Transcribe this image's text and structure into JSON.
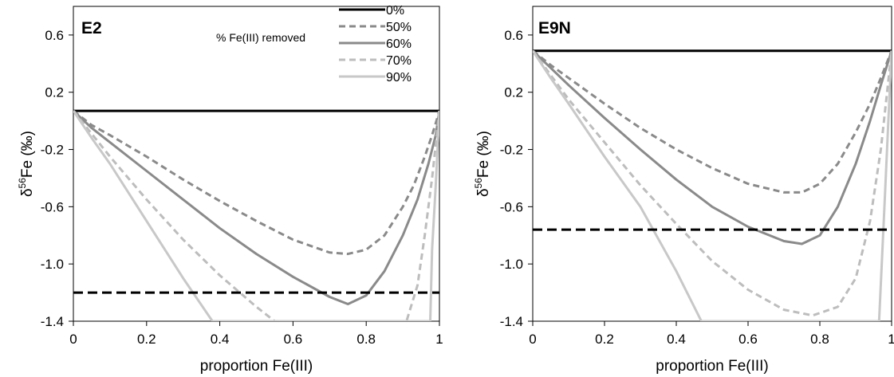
{
  "chart_data": [
    {
      "type": "line",
      "title": "E2",
      "xlabel": "proportion Fe(III)",
      "ylabel_main": "δ",
      "ylabel_sup": "56",
      "ylabel_rest": "Fe (‰)",
      "xlim": [
        0,
        1
      ],
      "ylim": [
        -1.4,
        0.8
      ],
      "xticks": [
        "0",
        "0.2",
        "0.4",
        "0.6",
        "0.8",
        "1"
      ],
      "yticks": [
        "-1.4",
        "-1.0",
        "-0.6",
        "-0.2",
        "0.2",
        "0.6"
      ],
      "legend_title": "% Fe(III) removed",
      "legend_position": "top-right",
      "reference_line": {
        "style": "dashed",
        "color": "#000000",
        "y": -1.2
      },
      "series": [
        {
          "name": "0%",
          "color": "#000000",
          "dash": "solid",
          "points": [
            [
              0,
              0.07
            ],
            [
              1,
              0.07
            ]
          ]
        },
        {
          "name": "50%",
          "color": "#8a8a8a",
          "dash": "dashed",
          "points": [
            [
              0,
              0.07
            ],
            [
              0.05,
              -0.03
            ],
            [
              0.1,
              -0.1
            ],
            [
              0.2,
              -0.25
            ],
            [
              0.3,
              -0.41
            ],
            [
              0.4,
              -0.56
            ],
            [
              0.5,
              -0.7
            ],
            [
              0.6,
              -0.83
            ],
            [
              0.7,
              -0.92
            ],
            [
              0.75,
              -0.93
            ],
            [
              0.8,
              -0.9
            ],
            [
              0.85,
              -0.8
            ],
            [
              0.9,
              -0.6
            ],
            [
              0.93,
              -0.45
            ],
            [
              0.96,
              -0.25
            ],
            [
              0.98,
              -0.1
            ],
            [
              1,
              0.07
            ]
          ]
        },
        {
          "name": "60%",
          "color": "#8a8a8a",
          "dash": "solid",
          "points": [
            [
              0,
              0.07
            ],
            [
              0.05,
              -0.05
            ],
            [
              0.1,
              -0.15
            ],
            [
              0.2,
              -0.35
            ],
            [
              0.3,
              -0.55
            ],
            [
              0.4,
              -0.75
            ],
            [
              0.5,
              -0.93
            ],
            [
              0.6,
              -1.09
            ],
            [
              0.7,
              -1.23
            ],
            [
              0.75,
              -1.28
            ],
            [
              0.8,
              -1.22
            ],
            [
              0.85,
              -1.05
            ],
            [
              0.9,
              -0.8
            ],
            [
              0.94,
              -0.55
            ],
            [
              0.97,
              -0.3
            ],
            [
              0.99,
              -0.1
            ],
            [
              1,
              0.07
            ]
          ]
        },
        {
          "name": "70%",
          "color": "#bdbdbd",
          "dash": "dashed",
          "points": [
            [
              0,
              0.07
            ],
            [
              0.1,
              -0.25
            ],
            [
              0.2,
              -0.55
            ],
            [
              0.3,
              -0.83
            ],
            [
              0.4,
              -1.08
            ],
            [
              0.5,
              -1.3
            ],
            [
              0.55,
              -1.4
            ],
            [
              0.91,
              -1.4
            ],
            [
              0.94,
              -1.15
            ],
            [
              0.96,
              -0.8
            ],
            [
              0.98,
              -0.4
            ],
            [
              1,
              0.07
            ]
          ]
        },
        {
          "name": "90%",
          "color": "#c8c8c8",
          "dash": "solid",
          "points": [
            [
              0,
              0.07
            ],
            [
              0.05,
              -0.12
            ],
            [
              0.1,
              -0.3
            ],
            [
              0.2,
              -0.7
            ],
            [
              0.3,
              -1.1
            ],
            [
              0.38,
              -1.4
            ],
            [
              0.975,
              -1.4
            ],
            [
              0.98,
              -0.9
            ],
            [
              0.99,
              -0.45
            ],
            [
              1,
              0.07
            ]
          ]
        }
      ]
    },
    {
      "type": "line",
      "title": "E9N",
      "xlabel": "proportion Fe(III)",
      "ylabel_main": "δ",
      "ylabel_sup": "56",
      "ylabel_rest": "Fe (‰)",
      "xlim": [
        0,
        1
      ],
      "ylim": [
        -1.4,
        0.8
      ],
      "xticks": [
        "0",
        "0.2",
        "0.4",
        "0.6",
        "0.8",
        "1"
      ],
      "yticks": [
        "-1.4",
        "-1.0",
        "-0.6",
        "-0.2",
        "0.2",
        "0.6"
      ],
      "reference_line": {
        "style": "dashed",
        "color": "#000000",
        "y": -0.76
      },
      "series": [
        {
          "name": "0%",
          "color": "#000000",
          "dash": "solid",
          "points": [
            [
              0,
              0.49
            ],
            [
              1,
              0.49
            ]
          ]
        },
        {
          "name": "50%",
          "color": "#8a8a8a",
          "dash": "dashed",
          "points": [
            [
              0,
              0.49
            ],
            [
              0.05,
              0.39
            ],
            [
              0.1,
              0.3
            ],
            [
              0.2,
              0.12
            ],
            [
              0.3,
              -0.05
            ],
            [
              0.4,
              -0.2
            ],
            [
              0.5,
              -0.33
            ],
            [
              0.6,
              -0.44
            ],
            [
              0.7,
              -0.5
            ],
            [
              0.75,
              -0.5
            ],
            [
              0.8,
              -0.44
            ],
            [
              0.85,
              -0.3
            ],
            [
              0.9,
              -0.08
            ],
            [
              0.94,
              0.12
            ],
            [
              0.97,
              0.3
            ],
            [
              1,
              0.49
            ]
          ]
        },
        {
          "name": "60%",
          "color": "#8a8a8a",
          "dash": "solid",
          "points": [
            [
              0,
              0.49
            ],
            [
              0.05,
              0.37
            ],
            [
              0.1,
              0.25
            ],
            [
              0.2,
              0.02
            ],
            [
              0.3,
              -0.2
            ],
            [
              0.4,
              -0.41
            ],
            [
              0.5,
              -0.6
            ],
            [
              0.6,
              -0.74
            ],
            [
              0.7,
              -0.84
            ],
            [
              0.75,
              -0.86
            ],
            [
              0.8,
              -0.8
            ],
            [
              0.85,
              -0.6
            ],
            [
              0.9,
              -0.3
            ],
            [
              0.94,
              0
            ],
            [
              0.97,
              0.25
            ],
            [
              1,
              0.49
            ]
          ]
        },
        {
          "name": "70%",
          "color": "#bdbdbd",
          "dash": "dashed",
          "points": [
            [
              0,
              0.49
            ],
            [
              0.1,
              0.15
            ],
            [
              0.2,
              -0.15
            ],
            [
              0.3,
              -0.45
            ],
            [
              0.4,
              -0.72
            ],
            [
              0.5,
              -0.98
            ],
            [
              0.6,
              -1.18
            ],
            [
              0.7,
              -1.32
            ],
            [
              0.78,
              -1.36
            ],
            [
              0.85,
              -1.3
            ],
            [
              0.9,
              -1.1
            ],
            [
              0.94,
              -0.7
            ],
            [
              0.97,
              -0.2
            ],
            [
              1,
              0.49
            ]
          ]
        },
        {
          "name": "90%",
          "color": "#c8c8c8",
          "dash": "solid",
          "points": [
            [
              0,
              0.49
            ],
            [
              0.05,
              0.3
            ],
            [
              0.1,
              0.12
            ],
            [
              0.2,
              -0.25
            ],
            [
              0.3,
              -0.6
            ],
            [
              0.4,
              -1.05
            ],
            [
              0.47,
              -1.4
            ],
            [
              0.965,
              -1.4
            ],
            [
              0.98,
              -0.6
            ],
            [
              0.99,
              -0.05
            ],
            [
              1,
              0.49
            ]
          ]
        }
      ]
    }
  ]
}
